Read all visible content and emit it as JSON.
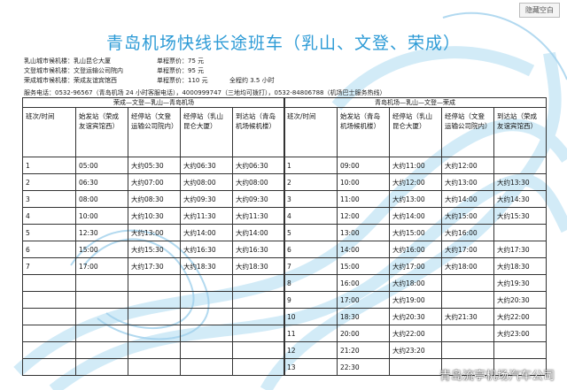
{
  "button": "隐藏空白",
  "title": "青岛机场快线长途班车（乳山、文登、荣成）",
  "info": [
    {
      "station": "乳山城市候机楼：乳山昆仑大厦",
      "fare": "单程票价：75 元"
    },
    {
      "station": "文登城市候机楼：文登运输公司院内",
      "fare": "单程票价：95 元"
    },
    {
      "station": "荣成城市候机楼：荣成友谊宾馆西",
      "fare": "单程票价：110 元",
      "duration": "全程约 3.5 小时"
    }
  ],
  "service": "服务电话：0532-96567（青岛机场 24 小时客服电话），4000999747（三地均可拨打），0532-84806788（机场巴士服务热线）",
  "left": {
    "heading": "荣成—文登—乳山—青岛机场",
    "columns": [
      "班次/时间",
      "始发站（荣成友谊宾馆西）",
      "经停站（文登运输公司院内）",
      "经停站（乳山昆仑大厦）",
      "到达站（青岛机场候机楼）"
    ],
    "rows": [
      [
        "1",
        "05:00",
        "大约05:30",
        "大约06:30",
        "大约06:30"
      ],
      [
        "2",
        "06:30",
        "大约07:00",
        "大约08:00",
        "大约08:00"
      ],
      [
        "3",
        "08:00",
        "大约08:30",
        "大约09:30",
        "大约09:30"
      ],
      [
        "4",
        "10:00",
        "大约10:30",
        "大约11:30",
        "大约11:30"
      ],
      [
        "5",
        "12:30",
        "大约13:00",
        "大约14:00",
        "大约14:00"
      ],
      [
        "6",
        "15:00",
        "大约15:30",
        "大约16:30",
        "大约16:30"
      ],
      [
        "7",
        "17:00",
        "大约17:30",
        "大约18:30",
        "大约18:30"
      ]
    ]
  },
  "right": {
    "heading": "青岛机场—乳山—文登—荣成",
    "columns": [
      "班次/时间",
      "始发站（青岛机场候机楼）",
      "经停站（乳山昆仑大厦）",
      "经停站（文登运输公司院内）",
      "到达站（荣成友谊宾馆西）"
    ],
    "rows": [
      [
        "1",
        "09:00",
        "大约11:00",
        "大约12:00",
        null
      ],
      [
        "2",
        "10:00",
        "大约12:00",
        "大约13:00",
        "大约13:30"
      ],
      [
        "3",
        "11:00",
        "大约13:00",
        "大约14:00",
        "大约14:30"
      ],
      [
        "4",
        "12:00",
        "大约14:00",
        "大约15:00",
        "大约15:30"
      ],
      [
        "5",
        "13:00",
        "大约15:00",
        "大约16:00",
        null
      ],
      [
        "6",
        "14:00",
        "大约16:00",
        "大约17:00",
        "大约17:30"
      ],
      [
        "7",
        "15:00",
        "大约17:00",
        "大约18:00",
        "大约18:30"
      ],
      [
        "8",
        "16:00",
        "大约18:00",
        null,
        "大约19:30"
      ],
      [
        "9",
        "17:00",
        "大约19:00",
        null,
        "大约20:30"
      ],
      [
        "10",
        "18:30",
        "大约20:30",
        "大约21:30",
        "大约22:00"
      ],
      [
        "11",
        "20:00",
        "大约22:00",
        null,
        "大约23:00"
      ],
      [
        "12",
        "21:20",
        "大约23:20",
        null,
        null
      ],
      [
        "13",
        "22:30",
        null,
        null,
        null
      ]
    ]
  },
  "watermark": "青岛流亭机场汽车公司"
}
